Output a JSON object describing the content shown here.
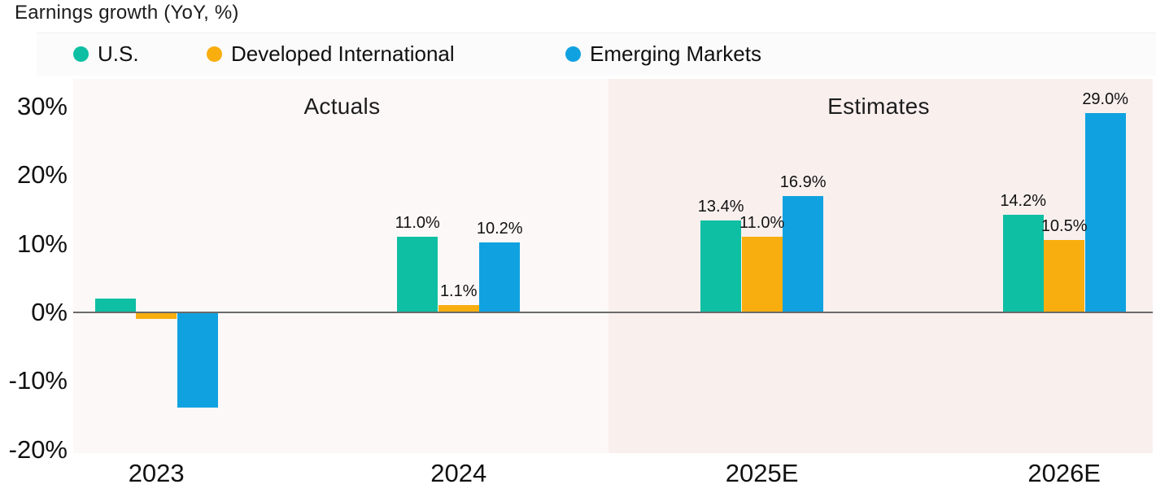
{
  "chart_data": {
    "type": "bar",
    "title": "Earnings growth (YoY, %)",
    "categories": [
      "2023",
      "2024",
      "2025E",
      "2026E"
    ],
    "series": [
      {
        "name": "U.S.",
        "color": "#0FBFA3",
        "values": [
          2.0,
          11.0,
          13.4,
          14.2
        ],
        "labels": [
          "",
          "11.0%",
          "13.4%",
          "14.2%"
        ]
      },
      {
        "name": "Developed International",
        "color": "#F8AE0E",
        "values": [
          -0.8,
          1.1,
          11.0,
          10.5
        ],
        "labels": [
          "",
          "1.1%",
          "11.0%",
          "10.5%"
        ]
      },
      {
        "name": "Emerging Markets",
        "color": "#10A2E0",
        "values": [
          -13.8,
          10.2,
          16.9,
          29.0
        ],
        "labels": [
          "",
          "10.2%",
          "16.9%",
          "29.0%"
        ]
      }
    ],
    "sections": [
      {
        "label": "Actuals",
        "categories": [
          "2023",
          "2024"
        ],
        "background": "#FDF8F8",
        "start_pct": 0,
        "width_pct": 49.6,
        "label_center_pct": 24.9
      },
      {
        "label": "Estimates",
        "categories": [
          "2025E",
          "2026E"
        ],
        "background": "#F9F0EE",
        "start_pct": 49.6,
        "width_pct": 50.4,
        "label_center_pct": 74.6
      }
    ],
    "y_axis": {
      "tick_labels": [
        "30%",
        "20%",
        "10%",
        "0%",
        "-10%",
        "-20%"
      ],
      "tick_values": [
        30,
        20,
        10,
        0,
        -10,
        -20
      ],
      "ylim": [
        -20.5,
        34
      ],
      "grid": false
    },
    "x_axis": {
      "tick_labels": [
        "2023",
        "2024",
        "2025E",
        "2026E"
      ]
    },
    "legend_position": "top",
    "zero_line_color": "#6A6A6A",
    "group_centers_pct": [
      7.7,
      35.7,
      63.8,
      91.8
    ]
  }
}
